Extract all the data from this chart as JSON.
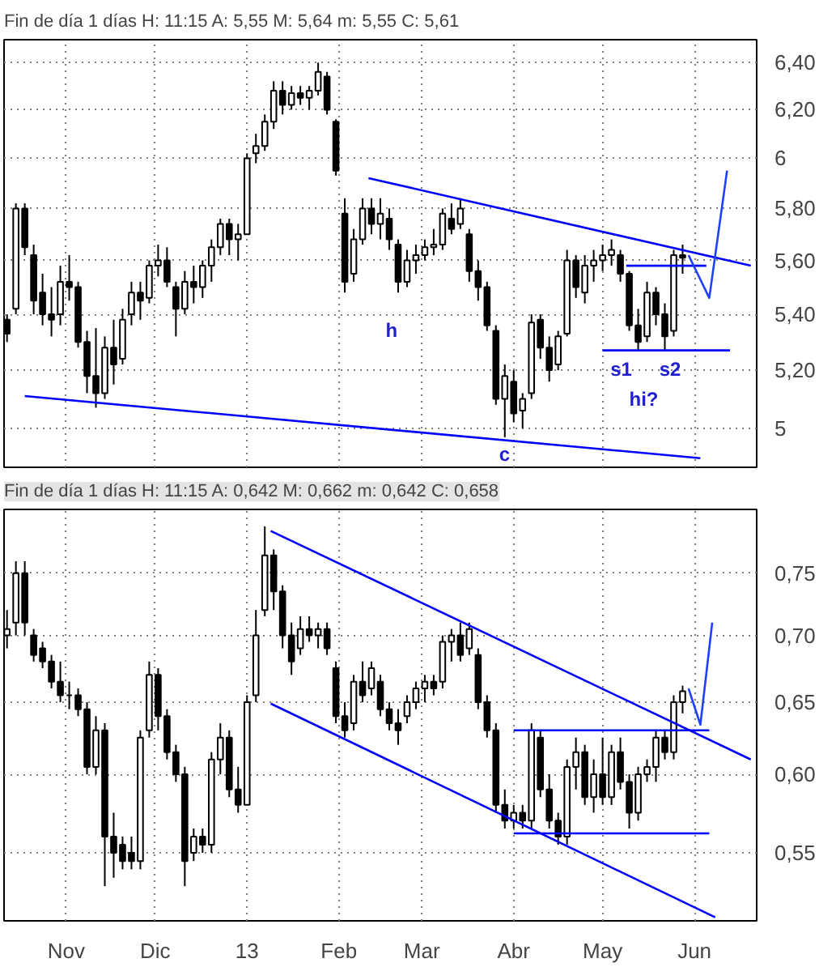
{
  "chart_data": [
    {
      "type": "candlestick",
      "title": "Fin de día 1 días H: 11:15 A: 5,55 M: 5,64 m: 5,55 C: 5,61",
      "x": [
        "2012-10-12",
        "2012-10-15",
        "2012-10-18",
        "2012-10-21",
        "2012-10-24",
        "2012-10-27",
        "2012-10-30",
        "2012-11-02",
        "2012-11-05",
        "2012-11-08",
        "2012-11-11",
        "2012-11-14",
        "2012-11-17",
        "2012-11-20",
        "2012-11-23",
        "2012-11-26",
        "2012-11-29",
        "2012-12-02",
        "2012-12-05",
        "2012-12-08",
        "2012-12-11",
        "2012-12-14",
        "2012-12-17",
        "2012-12-20",
        "2012-12-23",
        "2012-12-26",
        "2012-12-29",
        "2013-01-01",
        "2013-01-04",
        "2013-01-07",
        "2013-01-10",
        "2013-01-13",
        "2013-01-16",
        "2013-01-19",
        "2013-01-22",
        "2013-01-25",
        "2013-01-28",
        "2013-01-31",
        "2013-02-03",
        "2013-02-06",
        "2013-02-09",
        "2013-02-12",
        "2013-02-15",
        "2013-02-18",
        "2013-02-21",
        "2013-02-24",
        "2013-02-27",
        "2013-03-02",
        "2013-03-05",
        "2013-03-08",
        "2013-03-11",
        "2013-03-14",
        "2013-03-17",
        "2013-03-20",
        "2013-03-23",
        "2013-03-26",
        "2013-03-29",
        "2013-04-01",
        "2013-04-04",
        "2013-04-07",
        "2013-04-10",
        "2013-04-13",
        "2013-04-16",
        "2013-04-19",
        "2013-04-22",
        "2013-04-25",
        "2013-04-28",
        "2013-05-01",
        "2013-05-04",
        "2013-05-07",
        "2013-05-10",
        "2013-05-13",
        "2013-05-16",
        "2013-05-19",
        "2013-05-22",
        "2013-05-25",
        "2013-05-28"
      ],
      "ohlc": [
        [
          5.38,
          5.4,
          5.3,
          5.33
        ],
        [
          5.42,
          5.82,
          5.4,
          5.8
        ],
        [
          5.8,
          5.82,
          5.62,
          5.65
        ],
        [
          5.62,
          5.66,
          5.4,
          5.45
        ],
        [
          5.48,
          5.55,
          5.36,
          5.4
        ],
        [
          5.4,
          5.5,
          5.32,
          5.38
        ],
        [
          5.4,
          5.58,
          5.36,
          5.52
        ],
        [
          5.52,
          5.62,
          5.45,
          5.5
        ],
        [
          5.5,
          5.52,
          5.28,
          5.3
        ],
        [
          5.3,
          5.34,
          5.12,
          5.18
        ],
        [
          5.18,
          5.35,
          5.07,
          5.12
        ],
        [
          5.12,
          5.32,
          5.1,
          5.28
        ],
        [
          5.28,
          5.38,
          5.15,
          5.22
        ],
        [
          5.24,
          5.42,
          5.22,
          5.38
        ],
        [
          5.4,
          5.52,
          5.36,
          5.48
        ],
        [
          5.48,
          5.52,
          5.38,
          5.45
        ],
        [
          5.46,
          5.6,
          5.44,
          5.58
        ],
        [
          5.58,
          5.66,
          5.54,
          5.6
        ],
        [
          5.6,
          5.65,
          5.5,
          5.52
        ],
        [
          5.5,
          5.52,
          5.32,
          5.42
        ],
        [
          5.42,
          5.56,
          5.4,
          5.52
        ],
        [
          5.52,
          5.58,
          5.44,
          5.5
        ],
        [
          5.5,
          5.6,
          5.46,
          5.58
        ],
        [
          5.58,
          5.68,
          5.52,
          5.65
        ],
        [
          5.65,
          5.76,
          5.62,
          5.74
        ],
        [
          5.74,
          5.76,
          5.62,
          5.68
        ],
        [
          5.68,
          5.74,
          5.6,
          5.7
        ],
        [
          5.7,
          6.02,
          5.7,
          6.0
        ],
        [
          6.02,
          6.1,
          5.98,
          6.05
        ],
        [
          6.05,
          6.18,
          6.03,
          6.15
        ],
        [
          6.15,
          6.32,
          6.12,
          6.28
        ],
        [
          6.28,
          6.32,
          6.18,
          6.22
        ],
        [
          6.22,
          6.3,
          6.2,
          6.27
        ],
        [
          6.27,
          6.3,
          6.22,
          6.25
        ],
        [
          6.25,
          6.3,
          6.2,
          6.28
        ],
        [
          6.28,
          6.4,
          6.26,
          6.36
        ],
        [
          6.34,
          6.36,
          6.18,
          6.2
        ],
        [
          6.15,
          6.16,
          5.93,
          5.95
        ],
        [
          5.78,
          5.84,
          5.48,
          5.52
        ],
        [
          5.55,
          5.72,
          5.52,
          5.68
        ],
        [
          5.68,
          5.84,
          5.66,
          5.8
        ],
        [
          5.8,
          5.84,
          5.7,
          5.74
        ],
        [
          5.74,
          5.84,
          5.68,
          5.78
        ],
        [
          5.76,
          5.8,
          5.64,
          5.68
        ],
        [
          5.66,
          5.68,
          5.48,
          5.52
        ],
        [
          5.52,
          5.64,
          5.5,
          5.6
        ],
        [
          5.6,
          5.66,
          5.55,
          5.62
        ],
        [
          5.62,
          5.68,
          5.6,
          5.65
        ],
        [
          5.65,
          5.72,
          5.62,
          5.66
        ],
        [
          5.66,
          5.8,
          5.64,
          5.78
        ],
        [
          5.76,
          5.82,
          5.7,
          5.72
        ],
        [
          5.74,
          5.84,
          5.72,
          5.8
        ],
        [
          5.7,
          5.72,
          5.52,
          5.56
        ],
        [
          5.56,
          5.6,
          5.45,
          5.5
        ],
        [
          5.5,
          5.52,
          5.34,
          5.36
        ],
        [
          5.34,
          5.36,
          5.08,
          5.1
        ],
        [
          5.1,
          5.22,
          4.97,
          5.18
        ],
        [
          5.16,
          5.2,
          5.02,
          5.05
        ],
        [
          5.06,
          5.12,
          5.0,
          5.1
        ],
        [
          5.12,
          5.4,
          5.1,
          5.37
        ],
        [
          5.38,
          5.4,
          5.24,
          5.28
        ],
        [
          5.28,
          5.32,
          5.16,
          5.2
        ],
        [
          5.22,
          5.34,
          5.2,
          5.32
        ],
        [
          5.33,
          5.64,
          5.32,
          5.6
        ],
        [
          5.6,
          5.62,
          5.46,
          5.5
        ],
        [
          5.48,
          5.62,
          5.44,
          5.58
        ],
        [
          5.58,
          5.64,
          5.52,
          5.6
        ],
        [
          5.6,
          5.66,
          5.56,
          5.62
        ],
        [
          5.62,
          5.68,
          5.58,
          5.64
        ],
        [
          5.62,
          5.64,
          5.52,
          5.55
        ],
        [
          5.55,
          5.56,
          5.34,
          5.36
        ],
        [
          5.36,
          5.42,
          5.27,
          5.3
        ],
        [
          5.32,
          5.52,
          5.3,
          5.48
        ],
        [
          5.48,
          5.5,
          5.36,
          5.4
        ],
        [
          5.4,
          5.44,
          5.27,
          5.32
        ],
        [
          5.34,
          5.64,
          5.32,
          5.62
        ],
        [
          5.62,
          5.66,
          5.55,
          5.61
        ]
      ],
      "series": [
        {
          "type": "line",
          "color": "#0000ff",
          "x": [
            "2012-10-18",
            "2013-06-03"
          ],
          "values": [
            5.11,
            4.9
          ]
        },
        {
          "type": "line",
          "color": "#0000ff",
          "x": [
            "2013-02-11",
            "2013-06-20"
          ],
          "values": [
            5.92,
            5.58
          ]
        },
        {
          "type": "line",
          "color": "#0000ff",
          "x": [
            "2013-05-01",
            "2013-06-13"
          ],
          "values": [
            5.27,
            5.27
          ]
        },
        {
          "type": "line",
          "color": "#0000ff",
          "x": [
            "2013-05-09",
            "2013-06-05"
          ],
          "values": [
            5.58,
            5.58
          ]
        },
        {
          "type": "line",
          "color": "#2040ff",
          "x": [
            "2013-05-30",
            "2013-06-06",
            "2013-06-12"
          ],
          "values": [
            5.62,
            5.46,
            5.95
          ]
        }
      ],
      "annotations": [
        "h",
        "c",
        "s1",
        "s2",
        "hi?"
      ],
      "log": true,
      "grid": true,
      "tick_labels": "y",
      "xlim": [
        "2012-10-11",
        "2013-06-22"
      ],
      "xticks": [
        {
          "value": "2012-11-01",
          "label": null
        },
        {
          "value": "2012-12-01",
          "label": null
        },
        {
          "value": "2013-01-01",
          "label": null
        },
        {
          "value": "2013-02-01",
          "label": null
        },
        {
          "value": "2013-03-01",
          "label": null
        },
        {
          "value": "2013-04-01",
          "label": null
        },
        {
          "value": "2013-05-01",
          "label": null
        },
        {
          "value": "2013-06-01",
          "label": null
        }
      ],
      "ylim": [
        4.87,
        6.5
      ],
      "yticks": [
        5,
        {
          "value": 5.2,
          "label": "5,20"
        },
        {
          "value": 5.4,
          "label": "5,40"
        },
        {
          "value": 5.6,
          "label": "5,60"
        },
        {
          "value": 5.8,
          "label": "5,80"
        },
        6,
        {
          "value": 6.2,
          "label": "6,20"
        },
        {
          "value": 6.4,
          "label": "6,40"
        }
      ]
    },
    {
      "type": "candlestick",
      "title": "Fin de día 1 días H: 11:15 A: 0,642 M: 0,662 m: 0,642 C: 0,658",
      "x": [
        "2012-10-12",
        "2012-10-15",
        "2012-10-18",
        "2012-10-21",
        "2012-10-24",
        "2012-10-27",
        "2012-10-30",
        "2012-11-02",
        "2012-11-05",
        "2012-11-08",
        "2012-11-11",
        "2012-11-14",
        "2012-11-17",
        "2012-11-20",
        "2012-11-23",
        "2012-11-26",
        "2012-11-29",
        "2012-12-02",
        "2012-12-05",
        "2012-12-08",
        "2012-12-11",
        "2012-12-14",
        "2012-12-17",
        "2012-12-20",
        "2012-12-23",
        "2012-12-26",
        "2012-12-29",
        "2013-01-01",
        "2013-01-04",
        "2013-01-07",
        "2013-01-10",
        "2013-01-13",
        "2013-01-16",
        "2013-01-19",
        "2013-01-22",
        "2013-01-25",
        "2013-01-28",
        "2013-01-31",
        "2013-02-03",
        "2013-02-06",
        "2013-02-09",
        "2013-02-12",
        "2013-02-15",
        "2013-02-18",
        "2013-02-21",
        "2013-02-24",
        "2013-02-27",
        "2013-03-02",
        "2013-03-05",
        "2013-03-08",
        "2013-03-11",
        "2013-03-14",
        "2013-03-17",
        "2013-03-20",
        "2013-03-23",
        "2013-03-26",
        "2013-03-29",
        "2013-04-01",
        "2013-04-04",
        "2013-04-07",
        "2013-04-10",
        "2013-04-13",
        "2013-04-16",
        "2013-04-19",
        "2013-04-22",
        "2013-04-25",
        "2013-04-28",
        "2013-05-01",
        "2013-05-04",
        "2013-05-07",
        "2013-05-10",
        "2013-05-13",
        "2013-05-16",
        "2013-05-19",
        "2013-05-22",
        "2013-05-25",
        "2013-05-28"
      ],
      "ohlc": [
        [
          0.7,
          0.72,
          0.69,
          0.705
        ],
        [
          0.71,
          0.76,
          0.7,
          0.75
        ],
        [
          0.75,
          0.76,
          0.7,
          0.71
        ],
        [
          0.7,
          0.705,
          0.68,
          0.685
        ],
        [
          0.69,
          0.695,
          0.675,
          0.68
        ],
        [
          0.68,
          0.685,
          0.66,
          0.665
        ],
        [
          0.665,
          0.68,
          0.65,
          0.655
        ],
        [
          0.655,
          0.665,
          0.645,
          0.655
        ],
        [
          0.655,
          0.66,
          0.64,
          0.645
        ],
        [
          0.645,
          0.65,
          0.6,
          0.605
        ],
        [
          0.605,
          0.64,
          0.6,
          0.63
        ],
        [
          0.63,
          0.635,
          0.53,
          0.56
        ],
        [
          0.56,
          0.575,
          0.535,
          0.55
        ],
        [
          0.555,
          0.56,
          0.54,
          0.545
        ],
        [
          0.55,
          0.56,
          0.54,
          0.545
        ],
        [
          0.545,
          0.63,
          0.54,
          0.625
        ],
        [
          0.63,
          0.68,
          0.625,
          0.67
        ],
        [
          0.67,
          0.675,
          0.63,
          0.64
        ],
        [
          0.64,
          0.645,
          0.61,
          0.615
        ],
        [
          0.615,
          0.62,
          0.595,
          0.6
        ],
        [
          0.6,
          0.605,
          0.53,
          0.545
        ],
        [
          0.55,
          0.565,
          0.545,
          0.56
        ],
        [
          0.56,
          0.565,
          0.55,
          0.555
        ],
        [
          0.555,
          0.615,
          0.55,
          0.61
        ],
        [
          0.61,
          0.635,
          0.6,
          0.625
        ],
        [
          0.625,
          0.63,
          0.585,
          0.59
        ],
        [
          0.59,
          0.605,
          0.575,
          0.58
        ],
        [
          0.58,
          0.655,
          0.58,
          0.65
        ],
        [
          0.655,
          0.72,
          0.65,
          0.7
        ],
        [
          0.72,
          0.79,
          0.715,
          0.765
        ],
        [
          0.765,
          0.77,
          0.72,
          0.735
        ],
        [
          0.735,
          0.74,
          0.69,
          0.7
        ],
        [
          0.7,
          0.71,
          0.67,
          0.68
        ],
        [
          0.69,
          0.715,
          0.685,
          0.705
        ],
        [
          0.705,
          0.715,
          0.695,
          0.7
        ],
        [
          0.7,
          0.71,
          0.69,
          0.705
        ],
        [
          0.705,
          0.71,
          0.685,
          0.69
        ],
        [
          0.675,
          0.68,
          0.635,
          0.64
        ],
        [
          0.64,
          0.65,
          0.625,
          0.63
        ],
        [
          0.635,
          0.67,
          0.63,
          0.665
        ],
        [
          0.665,
          0.68,
          0.65,
          0.655
        ],
        [
          0.66,
          0.68,
          0.655,
          0.675
        ],
        [
          0.665,
          0.67,
          0.64,
          0.645
        ],
        [
          0.645,
          0.65,
          0.63,
          0.635
        ],
        [
          0.635,
          0.645,
          0.62,
          0.63
        ],
        [
          0.64,
          0.655,
          0.635,
          0.65
        ],
        [
          0.65,
          0.665,
          0.645,
          0.66
        ],
        [
          0.66,
          0.67,
          0.65,
          0.665
        ],
        [
          0.665,
          0.67,
          0.655,
          0.66
        ],
        [
          0.665,
          0.7,
          0.66,
          0.695
        ],
        [
          0.695,
          0.705,
          0.68,
          0.7
        ],
        [
          0.7,
          0.71,
          0.68,
          0.685
        ],
        [
          0.69,
          0.71,
          0.685,
          0.705
        ],
        [
          0.685,
          0.69,
          0.645,
          0.65
        ],
        [
          0.65,
          0.655,
          0.625,
          0.63
        ],
        [
          0.63,
          0.635,
          0.575,
          0.58
        ],
        [
          0.58,
          0.59,
          0.565,
          0.57
        ],
        [
          0.57,
          0.58,
          0.565,
          0.575
        ],
        [
          0.575,
          0.58,
          0.565,
          0.57
        ],
        [
          0.57,
          0.635,
          0.565,
          0.63
        ],
        [
          0.625,
          0.63,
          0.585,
          0.59
        ],
        [
          0.59,
          0.6,
          0.565,
          0.57
        ],
        [
          0.57,
          0.575,
          0.555,
          0.56
        ],
        [
          0.56,
          0.61,
          0.555,
          0.605
        ],
        [
          0.605,
          0.625,
          0.59,
          0.615
        ],
        [
          0.615,
          0.62,
          0.58,
          0.585
        ],
        [
          0.585,
          0.61,
          0.575,
          0.6
        ],
        [
          0.6,
          0.625,
          0.58,
          0.585
        ],
        [
          0.585,
          0.62,
          0.58,
          0.615
        ],
        [
          0.615,
          0.625,
          0.59,
          0.595
        ],
        [
          0.595,
          0.6,
          0.565,
          0.575
        ],
        [
          0.575,
          0.605,
          0.57,
          0.6
        ],
        [
          0.6,
          0.61,
          0.595,
          0.605
        ],
        [
          0.605,
          0.63,
          0.595,
          0.625
        ],
        [
          0.625,
          0.63,
          0.61,
          0.615
        ],
        [
          0.615,
          0.655,
          0.61,
          0.65
        ],
        [
          0.65,
          0.662,
          0.642,
          0.658
        ]
      ],
      "series": [
        {
          "type": "line",
          "color": "#0000ff",
          "x": [
            "2013-01-09",
            "2013-06-20"
          ],
          "values": [
            0.786,
            0.61
          ]
        },
        {
          "type": "line",
          "color": "#0000ff",
          "x": [
            "2013-01-09",
            "2013-06-08"
          ],
          "values": [
            0.649,
            0.512
          ]
        },
        {
          "type": "line",
          "color": "#0000ff",
          "x": [
            "2013-04-01",
            "2013-06-06"
          ],
          "values": [
            0.63,
            0.63
          ]
        },
        {
          "type": "line",
          "color": "#0000ff",
          "x": [
            "2013-04-01",
            "2013-06-06"
          ],
          "values": [
            0.562,
            0.562
          ]
        },
        {
          "type": "line",
          "color": "#2040ff",
          "x": [
            "2013-05-30",
            "2013-06-03",
            "2013-06-07"
          ],
          "values": [
            0.66,
            0.634,
            0.71
          ]
        }
      ],
      "log": true,
      "grid": true,
      "xlim": [
        "2012-10-11",
        "2013-06-22"
      ],
      "xticks": [
        {
          "value": "2012-11-01",
          "label": "Nov"
        },
        {
          "value": "2012-12-01",
          "label": "Dic"
        },
        {
          "value": "2013-01-01",
          "label": "13"
        },
        {
          "value": "2013-02-01",
          "label": "Feb"
        },
        {
          "value": "2013-03-01",
          "label": "Mar"
        },
        {
          "value": "2013-04-01",
          "label": "Abr"
        },
        {
          "value": "2013-05-01",
          "label": "May"
        },
        {
          "value": "2013-06-01",
          "label": "Jun"
        }
      ],
      "ylim": [
        0.51,
        0.805
      ],
      "yticks": [
        {
          "value": 0.55,
          "label": "0,55"
        },
        {
          "value": 0.6,
          "label": "0,60"
        },
        {
          "value": 0.65,
          "label": "0,65"
        },
        {
          "value": 0.7,
          "label": "0,70"
        },
        {
          "value": 0.75,
          "label": "0,75"
        }
      ]
    }
  ]
}
